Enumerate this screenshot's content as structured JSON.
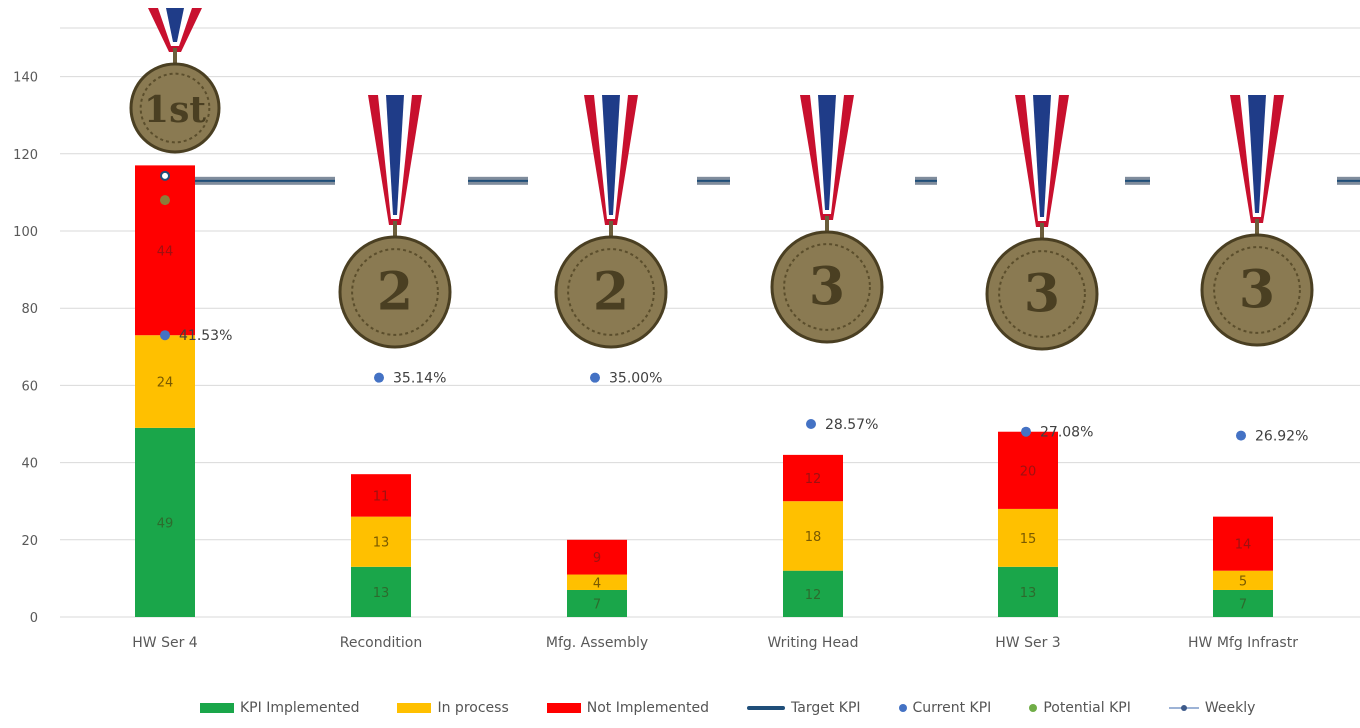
{
  "chart_data": {
    "type": "bar",
    "stacked": true,
    "categories": [
      "HW Ser 4",
      "Recondition",
      "Mfg. Assembly",
      "Writing Head",
      "HW Ser 3",
      "HW Mfg Infrastr"
    ],
    "series": [
      {
        "name": "KPI Implemented",
        "color": "#1aa64a",
        "values": [
          49,
          13,
          7,
          12,
          13,
          7
        ]
      },
      {
        "name": "In process",
        "color": "#ffc000",
        "values": [
          24,
          13,
          4,
          18,
          15,
          5
        ]
      },
      {
        "name": "Not Implemented",
        "color": "#ff0000",
        "values": [
          44,
          11,
          9,
          12,
          20,
          14
        ]
      }
    ],
    "current_kpi": {
      "name": "Current KPI",
      "color": "#4472c4",
      "values": [
        73,
        62,
        62,
        50,
        48,
        47
      ],
      "labels": [
        "41.53%",
        "35.14%",
        "35.00%",
        "28.57%",
        "27.08%",
        "26.92%"
      ]
    },
    "potential_kpi": {
      "name": "Potential KPI",
      "color": "#70ad47",
      "values": [
        108
      ]
    },
    "target_kpi": {
      "name": "Target KPI",
      "color": "#1f4e79",
      "value": 113
    },
    "weekly": {
      "name": "Weekly"
    },
    "medals": [
      "1st",
      "2",
      "2",
      "3",
      "3",
      "3"
    ],
    "yticks": [
      0,
      20,
      40,
      60,
      80,
      100,
      120,
      140
    ],
    "ylim": [
      0,
      150
    ],
    "grid": true,
    "legend_position": "bottom"
  },
  "legend": {
    "implemented": "KPI Implemented",
    "in_process": "In process",
    "not_implemented": "Not Implemented",
    "target": "Target KPI",
    "current": "Current KPI",
    "potential": "Potential KPI",
    "weekly": "Weekly"
  },
  "colors": {
    "implemented": "#1aa64a",
    "in_process": "#ffc000",
    "not_implemented": "#ff0000",
    "target": "#1f4e79",
    "current": "#4472c4",
    "potential": "#70ad47",
    "ribbon_red": "#c8102e",
    "ribbon_blue": "#1f3c88",
    "medal": "#8a7a52"
  }
}
